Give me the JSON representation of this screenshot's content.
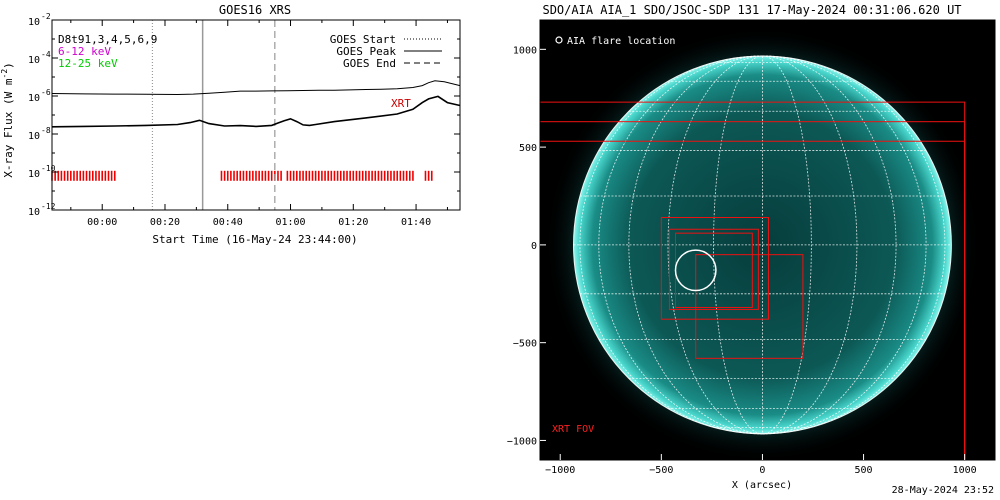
{
  "goes_panel": {
    "title": "GOES16 XRS",
    "xlabel": "Start Time (16-May-24 23:44:00)",
    "ylabel_main": "X-ray Flux (W m",
    "ylabel_exp": "-2",
    "ylabel_close": ")",
    "legend_left": [
      {
        "text": "D8t91,3,4,5,6,9",
        "color": "#000000"
      },
      {
        "text": "6-12 keV",
        "color": "#cc00cc"
      },
      {
        "text": "12-25 keV",
        "color": "#00cc00"
      }
    ],
    "legend_right": [
      {
        "text": "GOES Start",
        "style": "dotted"
      },
      {
        "text": "GOES Peak",
        "style": "solid"
      },
      {
        "text": "GOES End",
        "style": "dashed"
      }
    ],
    "xrt_label": "XRT"
  },
  "aia_panel": {
    "title": "SDO/AIA AIA_1 SDO/JSOC-SDP 131 17-May-2024 00:31:06.620 UT",
    "legend_text": "AIA flare location",
    "xrt_fov_label": "XRT FOV",
    "xlabel": "X (arcsec)"
  },
  "footer": {
    "stamp": "28-May-2024 23:52"
  },
  "chart_data": [
    {
      "type": "line",
      "title": "GOES16 XRS",
      "xlabel": "Start Time (16-May-24 23:44:00)",
      "ylabel": "X-ray Flux (W m-2)",
      "x_unit": "minutes after 16-May-24 23:44:00",
      "xlim": [
        0,
        130
      ],
      "ylim_log10": [
        -12,
        -2
      ],
      "y_scale": "log",
      "x_ticks": [
        {
          "value": 16,
          "label": "00:00"
        },
        {
          "value": 36,
          "label": "00:20"
        },
        {
          "value": 56,
          "label": "00:40"
        },
        {
          "value": 76,
          "label": "01:00"
        },
        {
          "value": 96,
          "label": "01:20"
        },
        {
          "value": 116,
          "label": "01:40"
        }
      ],
      "y_ticks": [
        {
          "value": -2,
          "label": "10",
          "exp": "-2"
        },
        {
          "value": -4,
          "label": "10",
          "exp": "-4"
        },
        {
          "value": -6,
          "label": "10",
          "exp": "-6"
        },
        {
          "value": -8,
          "label": "10",
          "exp": "-8"
        },
        {
          "value": -10,
          "label": "10",
          "exp": "-10"
        },
        {
          "value": -12,
          "label": "10",
          "exp": "-12"
        }
      ],
      "series": [
        {
          "name": "",
          "color": "#000000",
          "x": [
            0,
            10,
            20,
            30,
            40,
            45,
            50,
            55,
            60,
            65,
            70,
            75,
            80,
            85,
            90,
            95,
            100,
            105,
            110,
            115,
            118,
            120,
            122,
            125,
            130
          ],
          "y_log10": [
            -5.87,
            -5.89,
            -5.9,
            -5.91,
            -5.92,
            -5.9,
            -5.86,
            -5.8,
            -5.74,
            -5.74,
            -5.73,
            -5.72,
            -5.71,
            -5.7,
            -5.7,
            -5.68,
            -5.66,
            -5.64,
            -5.62,
            -5.55,
            -5.45,
            -5.3,
            -5.2,
            -5.25,
            -5.45
          ]
        },
        {
          "name": "",
          "color": "#000000",
          "x": [
            0,
            10,
            20,
            30,
            40,
            44,
            47,
            50,
            55,
            60,
            65,
            70,
            72,
            74,
            76,
            78,
            80,
            82,
            84,
            90,
            100,
            110,
            115,
            118,
            120,
            123,
            126,
            130
          ],
          "y_log10": [
            -7.62,
            -7.6,
            -7.58,
            -7.55,
            -7.5,
            -7.4,
            -7.28,
            -7.45,
            -7.58,
            -7.56,
            -7.6,
            -7.55,
            -7.42,
            -7.3,
            -7.2,
            -7.35,
            -7.52,
            -7.55,
            -7.5,
            -7.35,
            -7.15,
            -6.95,
            -6.7,
            -6.35,
            -6.15,
            -6.02,
            -6.35,
            -6.5
          ]
        }
      ],
      "vertical_markers": [
        {
          "label": "GOES Start",
          "x": 32,
          "style": "dotted"
        },
        {
          "label": "GOES Peak",
          "x": 48,
          "style": "solid"
        },
        {
          "label": "GOES End",
          "x": 71,
          "style": "dashed"
        }
      ],
      "xrt_coverage": [
        [
          0,
          20
        ],
        [
          54,
          73
        ],
        [
          75,
          115
        ],
        [
          119,
          121
        ]
      ],
      "xrt_coverage_log10": -10.2
    },
    {
      "type": "scatter",
      "title": "SDO/AIA AIA_1 SDO/JSOC-SDP 131 17-May-2024 00:31:06.620 UT",
      "xlabel": "X (arcsec)",
      "xlim": [
        -1100,
        1150
      ],
      "ylim": [
        -1100,
        1150
      ],
      "x_ticks": [
        -1000,
        -500,
        0,
        500,
        1000
      ],
      "y_ticks": [
        -1000,
        -500,
        0,
        500,
        1000
      ],
      "solar_radius_arcsec": 950,
      "flare_location": {
        "x": -330,
        "y": -130,
        "radius": 100
      },
      "xrt_fov_boxes": [
        {
          "x0": -1100,
          "y0": -1100,
          "x1": 1000,
          "y1": 730
        },
        {
          "x0": -1100,
          "y0": -1100,
          "x1": 1000,
          "y1": 630
        },
        {
          "x0": -1100,
          "y0": -1100,
          "x1": 1000,
          "y1": 530
        },
        {
          "x0": -500,
          "y0": -380,
          "x1": 30,
          "y1": 140
        },
        {
          "x0": -460,
          "y0": -330,
          "x1": -20,
          "y1": 80
        },
        {
          "x0": -430,
          "y0": -320,
          "x1": -50,
          "y1": 60
        },
        {
          "x0": -330,
          "y0": -580,
          "x1": 200,
          "y1": -50
        }
      ]
    }
  ]
}
